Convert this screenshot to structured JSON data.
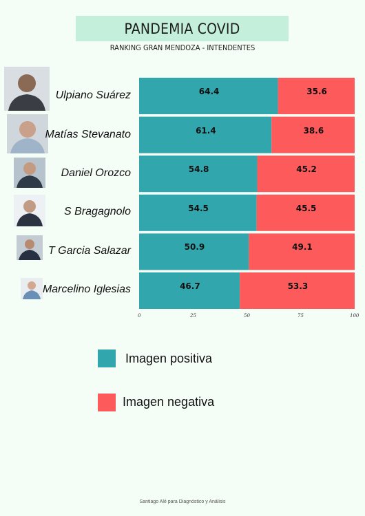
{
  "title": "PANDEMIA COVID",
  "subtitle": "RANKING GRAN MENDOZA  - INTENDENTES",
  "chart_data": {
    "type": "bar",
    "orientation": "horizontal",
    "stacked": true,
    "categories": [
      "Ulpiano Suárez",
      "Matías Stevanato",
      "Daniel Orozco",
      "S Bragagnolo",
      "T Garcia Salazar",
      "Marcelino Iglesias"
    ],
    "series": [
      {
        "name": "Imagen positiva",
        "color": "#32a6ad",
        "values": [
          64.4,
          61.4,
          54.8,
          54.5,
          50.9,
          46.7
        ],
        "labels": [
          "64.4",
          "61.4",
          "54.8",
          "54.5",
          "50.9",
          "46.7"
        ]
      },
      {
        "name": "Imagen negativa",
        "color": "#fd5a5b",
        "values": [
          35.6,
          38.6,
          45.2,
          45.5,
          49.1,
          53.3
        ],
        "labels": [
          "35.6",
          "38.6",
          "45.2",
          "45.5",
          "49.1",
          "53.3"
        ]
      }
    ],
    "xlim": [
      0,
      100
    ],
    "xticks": [
      "0",
      "25",
      "50",
      "75",
      "100"
    ],
    "grid": false,
    "legend": "bottom"
  },
  "legend": {
    "positive": "Imagen positiva",
    "negative": "Imagen negativa"
  },
  "footer": "Santiago Alé para Diagnóstico y Análisis"
}
